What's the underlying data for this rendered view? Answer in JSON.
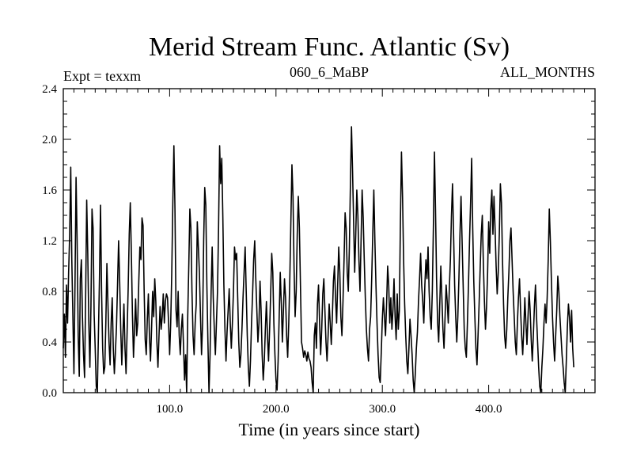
{
  "chart_data": {
    "type": "line",
    "title": "Merid Stream Func. Atlantic (Sv)",
    "subtitle_left": "Expt = texxm",
    "subtitle_center": "060_6_MaBP",
    "subtitle_right": "ALL_MONTHS",
    "xlabel": "Time (in years since start)",
    "ylabel": "",
    "xlim": [
      0,
      500
    ],
    "ylim": [
      0.0,
      2.4
    ],
    "x_ticks": [
      100,
      200,
      300,
      400
    ],
    "x_tick_labels": [
      "100.0",
      "200.0",
      "300.0",
      "400.0"
    ],
    "y_ticks": [
      0.0,
      0.4,
      0.8,
      1.2,
      1.6,
      2.0,
      2.4
    ],
    "y_tick_labels": [
      "0.0",
      "0.4",
      "0.8",
      "1.2",
      "1.6",
      "2.0",
      "2.4"
    ],
    "grid": false,
    "series": [
      {
        "name": "Merid Stream Func. Atlantic",
        "x_start": 0,
        "x_step": 1,
        "values": [
          0.35,
          0.62,
          0.28,
          0.85,
          0.55,
          0.95,
          1.25,
          1.78,
          1.05,
          0.6,
          0.15,
          0.85,
          1.7,
          1.2,
          0.45,
          0.13,
          0.9,
          1.05,
          0.6,
          0.3,
          0.12,
          0.75,
          1.52,
          1.1,
          0.55,
          0.2,
          0.68,
          1.45,
          1.3,
          0.62,
          0.35,
          0.05,
          0.0,
          0.45,
          0.9,
          1.48,
          0.8,
          0.35,
          0.15,
          0.2,
          0.55,
          1.02,
          0.7,
          0.4,
          0.22,
          0.55,
          0.75,
          0.35,
          0.15,
          0.32,
          0.52,
          0.85,
          1.2,
          0.88,
          0.5,
          0.22,
          0.45,
          0.7,
          0.35,
          0.15,
          0.48,
          0.82,
          1.25,
          1.5,
          1.1,
          0.62,
          0.28,
          0.5,
          0.74,
          0.45,
          0.55,
          0.88,
          1.15,
          1.05,
          1.38,
          1.32,
          0.82,
          0.42,
          0.3,
          0.58,
          0.78,
          0.45,
          0.25,
          0.5,
          0.8,
          0.6,
          0.9,
          0.72,
          0.4,
          0.2,
          0.45,
          0.68,
          0.5,
          0.6,
          0.78,
          0.55,
          0.72,
          0.78,
          0.75,
          0.55,
          0.3,
          0.55,
          0.95,
          1.5,
          1.95,
          1.45,
          0.65,
          0.52,
          0.8,
          0.45,
          0.3,
          0.5,
          0.62,
          0.38,
          0.1,
          0.3,
          0.0,
          0.6,
          1.0,
          1.45,
          1.3,
          0.8,
          0.45,
          0.3,
          0.55,
          0.7,
          1.35,
          1.15,
          0.95,
          0.6,
          0.3,
          0.55,
          1.2,
          1.62,
          1.48,
          0.85,
          0.4,
          0.0,
          0.3,
          0.8,
          1.15,
          0.75,
          0.5,
          0.3,
          0.55,
          0.8,
          1.3,
          1.95,
          1.65,
          1.85,
          1.4,
          0.85,
          0.5,
          0.25,
          0.48,
          0.65,
          0.82,
          0.55,
          0.35,
          0.55,
          0.8,
          1.15,
          1.05,
          1.1,
          0.75,
          0.4,
          0.2,
          0.3,
          0.5,
          0.75,
          0.95,
          1.15,
          0.8,
          0.45,
          0.2,
          0.05,
          0.25,
          0.55,
          0.78,
          1.05,
          1.2,
          0.9,
          0.65,
          0.4,
          0.55,
          0.88,
          0.65,
          0.3,
          0.1,
          0.25,
          0.5,
          0.72,
          0.45,
          0.25,
          0.5,
          0.78,
          1.1,
          0.95,
          0.55,
          0.3,
          0.1,
          0.02,
          0.25,
          0.6,
          0.95,
          0.7,
          0.4,
          0.65,
          0.9,
          0.75,
          0.45,
          0.28,
          0.55,
          0.9,
          1.35,
          1.8,
          1.55,
          0.98,
          0.6,
          0.8,
          1.25,
          1.55,
          1.3,
          0.85,
          0.4,
          0.35,
          0.28,
          0.33,
          0.3,
          0.25,
          0.32,
          0.27,
          0.25,
          0.2,
          0.08,
          0.0,
          0.45,
          0.55,
          0.35,
          0.7,
          0.85,
          0.55,
          0.3,
          0.5,
          0.78,
          0.9,
          0.65,
          0.4,
          0.25,
          0.45,
          0.7,
          0.55,
          0.38,
          0.6,
          0.88,
          1.0,
          0.75,
          0.55,
          0.85,
          1.15,
          0.95,
          0.6,
          0.45,
          0.72,
          1.05,
          1.42,
          1.3,
          0.95,
          0.8,
          1.15,
          1.65,
          2.1,
          1.75,
          1.35,
          0.95,
          1.25,
          1.6,
          1.4,
          1.05,
          0.8,
          1.2,
          1.6,
          1.38,
          1.05,
          0.75,
          0.5,
          0.35,
          0.25,
          0.5,
          0.6,
          0.9,
          1.25,
          1.6,
          1.2,
          0.85,
          0.55,
          0.3,
          0.12,
          0.08,
          0.32,
          0.58,
          0.75,
          0.6,
          0.45,
          0.7,
          1.0,
          0.85,
          0.55,
          0.75,
          0.5,
          0.65,
          0.9,
          0.6,
          0.42,
          0.78,
          0.5,
          0.65,
          1.35,
          1.9,
          1.55,
          1.05,
          0.7,
          0.45,
          0.25,
          0.15,
          0.35,
          0.58,
          0.45,
          0.3,
          0.1,
          0.0,
          0.15,
          0.35,
          0.48,
          0.72,
          0.9,
          1.1,
          0.85,
          0.72,
          0.55,
          0.85,
          1.05,
          0.9,
          1.15,
          0.8,
          0.6,
          0.5,
          0.8,
          1.3,
          1.9,
          1.45,
          0.9,
          0.55,
          0.4,
          0.7,
          1.0,
          0.75,
          0.5,
          0.35,
          0.6,
          0.85,
          0.72,
          0.55,
          0.82,
          1.05,
          1.4,
          1.65,
          1.25,
          0.85,
          0.6,
          0.4,
          0.6,
          0.9,
          1.25,
          1.55,
          1.2,
          0.85,
          0.5,
          0.35,
          0.28,
          0.55,
          0.85,
          1.2,
          1.5,
          1.85,
          1.3,
          0.88,
          0.6,
          0.35,
          0.22,
          0.45,
          0.7,
          0.98,
          1.25,
          1.4,
          1.02,
          0.72,
          0.5,
          0.68,
          0.95,
          1.35,
          1.1,
          1.45,
          1.6,
          1.25,
          1.55,
          1.3,
          1.0,
          0.78,
          0.95,
          1.25,
          1.65,
          1.5,
          1.05,
          0.7,
          0.45,
          0.35,
          0.5,
          0.75,
          0.95,
          1.2,
          1.3,
          1.05,
          0.8,
          0.6,
          0.4,
          0.3,
          0.55,
          0.75,
          0.9,
          0.65,
          0.45,
          0.3,
          0.5,
          0.75,
          0.55,
          0.38,
          0.6,
          0.8,
          0.65,
          0.42,
          0.25,
          0.45,
          0.68,
          0.85,
          0.6,
          0.4,
          0.2,
          0.05,
          0.0,
          0.2,
          0.35,
          0.55,
          0.7,
          0.55,
          0.75,
          1.05,
          1.45,
          1.2,
          0.88,
          0.6,
          0.4,
          0.25,
          0.45,
          0.65,
          0.92,
          0.8,
          0.6,
          0.45,
          0.3,
          0.2,
          0.08,
          0.0,
          0.25,
          0.52,
          0.7,
          0.6,
          0.4,
          0.65,
          0.35,
          0.2
        ]
      }
    ]
  }
}
